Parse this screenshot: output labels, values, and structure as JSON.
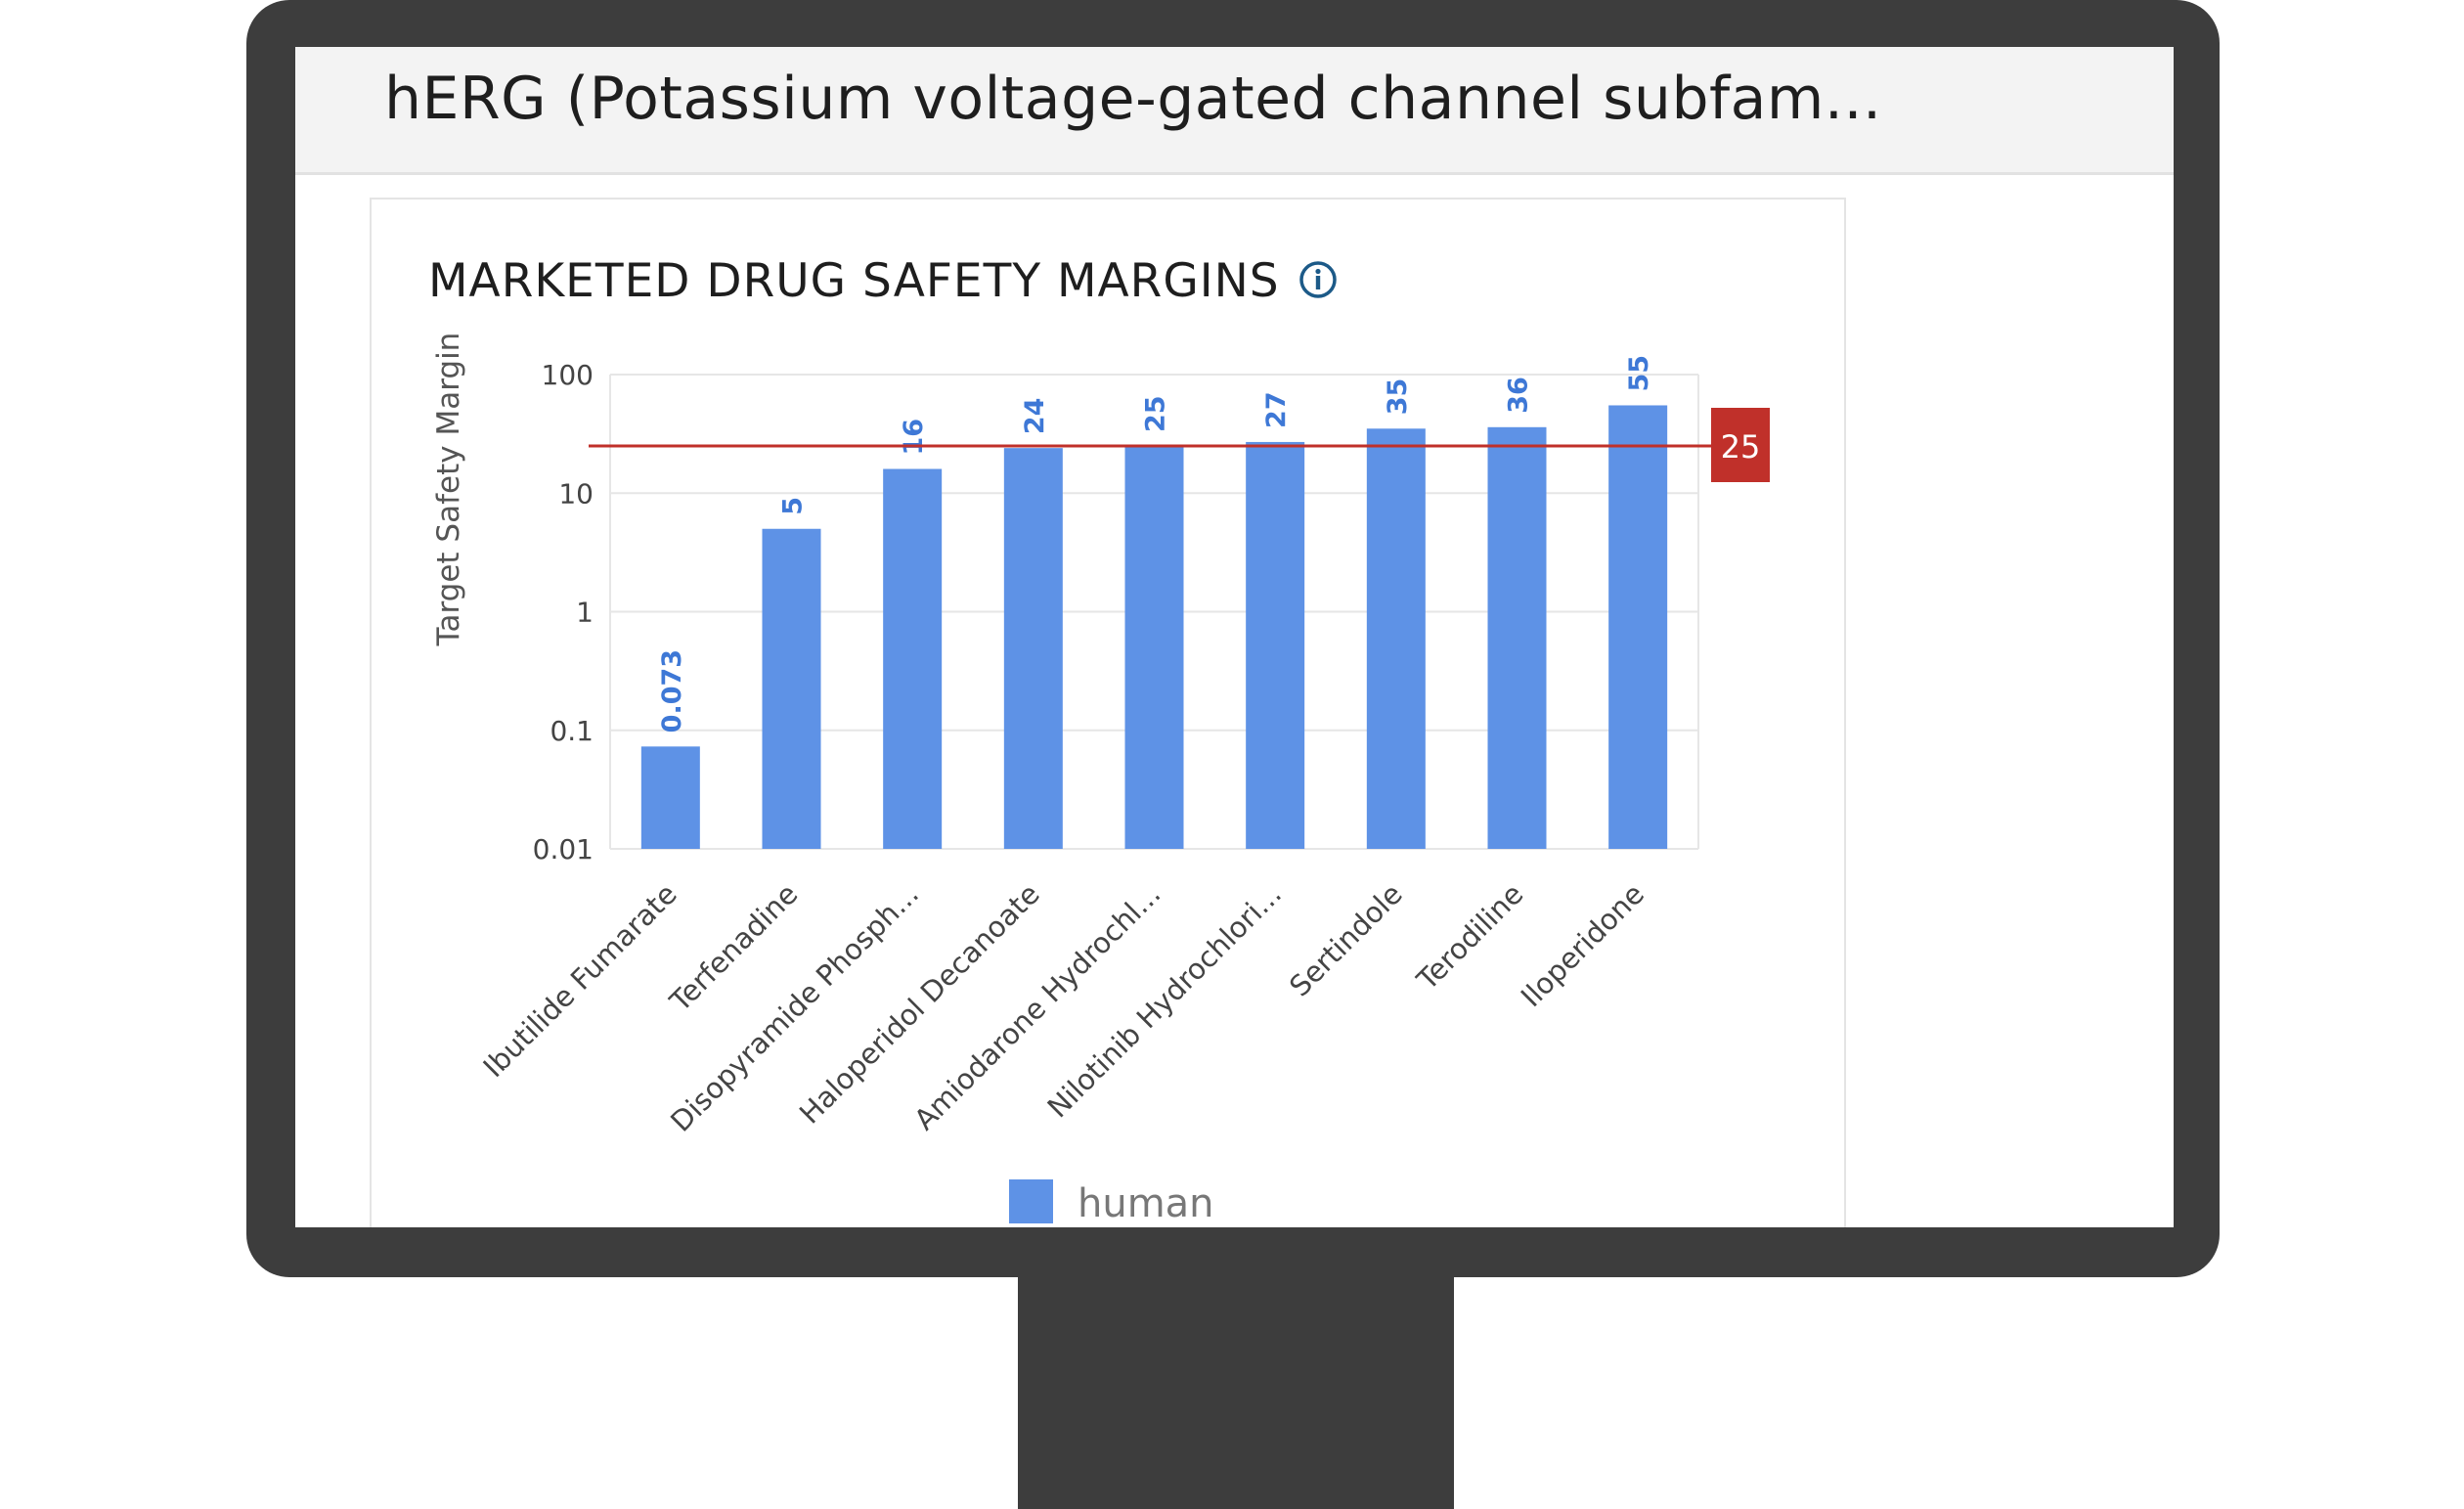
{
  "header": {
    "title": "hERG (Potassium voltage-gated channel subfam..."
  },
  "card": {
    "title": "MARKETED DRUG SAFETY MARGINS",
    "info_icon": "info-circle-icon"
  },
  "colors": {
    "bar": "#5e92e6",
    "label": "#3e78d6",
    "threshold_line": "#c0302a",
    "threshold_badge": "#c0302a",
    "frame": "#3d3d3d"
  },
  "chart_data": {
    "type": "bar",
    "yscale": "log",
    "ylabel": "Target Safety Margin",
    "ylim": [
      0.01,
      100
    ],
    "yticks": [
      {
        "value": 100,
        "label": "100"
      },
      {
        "value": 10,
        "label": "10"
      },
      {
        "value": 1,
        "label": "1"
      },
      {
        "value": 0.1,
        "label": "0.1"
      },
      {
        "value": 0.01,
        "label": "0.01"
      }
    ],
    "categories": [
      "Ibutilide Fumarate",
      "Terfenadine",
      "Disopyramide Phosph...",
      "Haloperidol Decanoate",
      "Amiodarone Hydrochl...",
      "Nilotinib Hydrochlori...",
      "Sertindole",
      "Terodiline",
      "Iloperidone"
    ],
    "series": [
      {
        "name": "human",
        "values": [
          0.073,
          5,
          16,
          24,
          25,
          27,
          35,
          36,
          55
        ],
        "labels": [
          "0.073",
          "5",
          "16",
          "24",
          "25",
          "27",
          "35",
          "36",
          "55"
        ]
      }
    ],
    "threshold": {
      "value": 25,
      "label": "25"
    },
    "grid": true,
    "legend": "bottom-center"
  }
}
